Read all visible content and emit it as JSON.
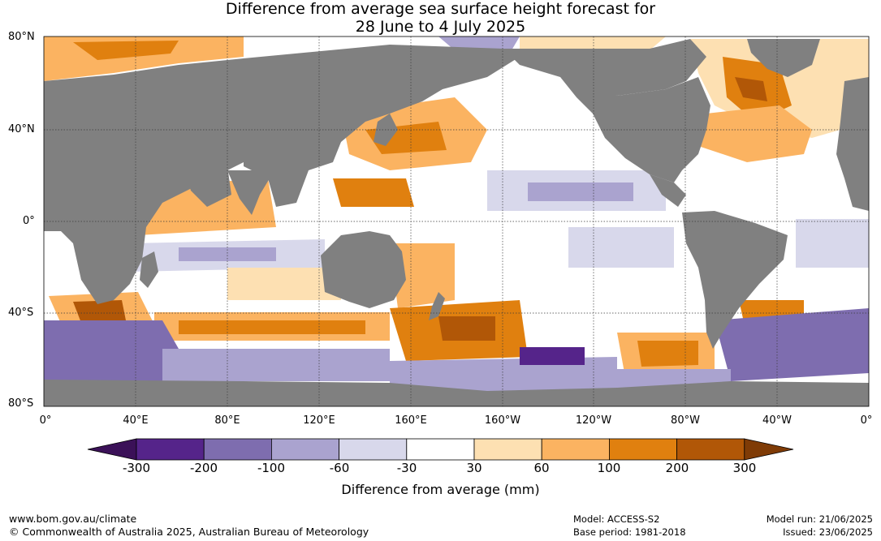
{
  "title_line1": "Difference from average sea surface height forecast for",
  "title_line2": "28 June to 4 July 2025",
  "lat_labels": [
    "80°N",
    "40°N",
    "0°",
    "40°S",
    "80°S"
  ],
  "lon_labels": [
    "0°",
    "40°E",
    "80°E",
    "120°E",
    "160°E",
    "160°W",
    "120°W",
    "80°W",
    "40°W",
    "0°"
  ],
  "colorbar": {
    "title": "Difference from average (mm)",
    "tick_labels": [
      "-300",
      "-200",
      "-100",
      "-60",
      "-30",
      "30",
      "60",
      "100",
      "200",
      "300"
    ],
    "colors": [
      "#3b1158",
      "#55248a",
      "#7e6daf",
      "#aaa3cf",
      "#d8d8eb",
      "#ffffff",
      "#fde0b2",
      "#fbb361",
      "#e0800f",
      "#b15707",
      "#7f3b06"
    ]
  },
  "colors": {
    "land": "#808080",
    "grid": "#3a3a3a"
  },
  "footer": {
    "website": "www.bom.gov.au/climate",
    "copyright": "© Commonwealth of Australia 2025, Australian Bureau of Meteorology",
    "model": "Model: ACCESS-S2",
    "base_period": "Base period: 1981-2018",
    "model_run": "Model run: 21/06/2025",
    "issued": "Issued: 23/06/2025"
  }
}
